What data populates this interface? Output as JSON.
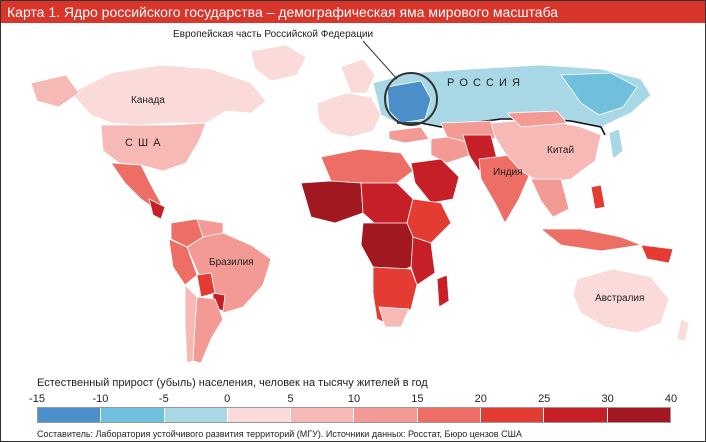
{
  "title": "Карта 1. Ядро российского государства – демографическая яма мирового масштаба",
  "map": {
    "callout": "Европейская часть Российской Федерации",
    "labels": {
      "russia": "Р О С С И Я",
      "canada": "Канада",
      "usa": "С Ш А",
      "china": "Китай",
      "india": "Индия",
      "brazil": "Бразилия",
      "australia": "Австралия"
    }
  },
  "legend": {
    "title": "Естественный прирост (убыль) населения, человек на тысячу жителей в год",
    "ticks": [
      "-15",
      "-10",
      "-5",
      "0",
      "5",
      "10",
      "15",
      "20",
      "25",
      "30",
      "40"
    ],
    "colors": [
      "#4a8fca",
      "#6fbfdd",
      "#a8d8e6",
      "#fbdada",
      "#f6b9b6",
      "#f39a94",
      "#ec6e64",
      "#e43b33",
      "#c61f28",
      "#a11820"
    ]
  },
  "footer": "Составитель: Лаборатория устойчивого развития территорий (МГУ).    Источники данных: Росстат, Бюро цензов США"
}
